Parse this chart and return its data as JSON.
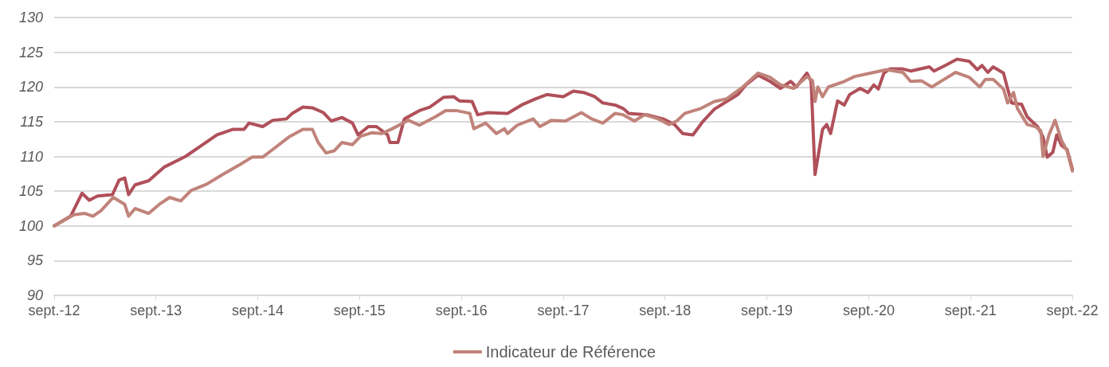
{
  "chart_data": {
    "type": "line",
    "ylim": [
      90,
      130
    ],
    "yticks": [
      90,
      95,
      100,
      105,
      110,
      115,
      120,
      125,
      130
    ],
    "xlim": [
      "2012-09",
      "2022-09"
    ],
    "xticks": [
      {
        "value": "2012-09",
        "label": "sept.-12"
      },
      {
        "value": "2013-09",
        "label": "sept.-13"
      },
      {
        "value": "2014-09",
        "label": "sept.-14"
      },
      {
        "value": "2015-09",
        "label": "sept.-15"
      },
      {
        "value": "2016-09",
        "label": "sept.-16"
      },
      {
        "value": "2017-09",
        "label": "sept.-17"
      },
      {
        "value": "2018-09",
        "label": "sept.-18"
      },
      {
        "value": "2019-09",
        "label": "sept.-19"
      },
      {
        "value": "2020-09",
        "label": "sept.-20"
      },
      {
        "value": "2021-09",
        "label": "sept.-21"
      },
      {
        "value": "2022-09",
        "label": "sept.-22"
      }
    ],
    "grid": "y",
    "legend": "bottom",
    "marker": "none",
    "line_style": "solid",
    "series": [
      {
        "color": "#b0505a",
        "x": [
          "2012-09-01",
          "2012-10-30",
          "2012-12-10",
          "2013-01-05",
          "2013-02-03",
          "2013-03-29",
          "2013-04-22",
          "2013-05-12",
          "2013-05-26",
          "2013-06-18",
          "2013-08-06",
          "2013-10-02",
          "2013-12-16",
          "2014-02-12",
          "2014-04-08",
          "2014-06-05",
          "2014-07-14",
          "2014-08-01",
          "2014-09-19",
          "2014-10-25",
          "2014-12-13",
          "2015-01-03",
          "2015-02-10",
          "2015-03-16",
          "2015-04-25",
          "2015-05-23",
          "2015-06-30",
          "2015-08-07",
          "2015-08-27",
          "2015-10-03",
          "2015-11-01",
          "2015-12-11",
          "2015-12-19",
          "2016-01-17",
          "2016-02-09",
          "2016-04-03",
          "2016-05-10",
          "2016-06-28",
          "2016-08-04",
          "2016-08-24",
          "2016-10-09",
          "2016-10-29",
          "2016-12-05",
          "2017-02-13",
          "2017-04-09",
          "2017-05-25",
          "2017-07-04",
          "2017-09-01",
          "2017-10-07",
          "2017-11-13",
          "2017-12-23",
          "2018-01-21",
          "2018-03-06",
          "2018-04-04",
          "2018-04-24",
          "2018-06-29",
          "2018-08-25",
          "2018-10-05",
          "2018-11-03",
          "2018-12-10",
          "2019-01-16",
          "2019-02-25",
          "2019-04-02",
          "2019-05-20",
          "2019-06-18",
          "2019-08-01",
          "2019-09-13",
          "2019-10-20",
          "2019-11-26",
          "2019-12-16",
          "2020-01-23",
          "2020-02-07",
          "2020-02-21",
          "2020-03-05",
          "2020-03-19",
          "2020-04-03",
          "2020-04-17",
          "2020-05-12",
          "2020-06-05",
          "2020-06-24",
          "2020-08-01",
          "2020-08-29",
          "2020-09-19",
          "2020-10-05",
          "2020-10-25",
          "2020-11-15",
          "2021-01-01",
          "2021-01-29",
          "2021-04-06",
          "2021-04-23",
          "2021-06-02",
          "2021-07-15",
          "2021-08-27",
          "2021-09-25",
          "2021-10-12",
          "2021-11-02",
          "2021-11-21",
          "2021-12-28",
          "2022-01-12",
          "2022-01-26",
          "2022-03-03",
          "2022-03-23",
          "2022-04-29",
          "2022-05-19",
          "2022-06-03",
          "2022-06-23",
          "2022-07-07",
          "2022-07-24",
          "2022-08-13",
          "2022-09-01"
        ],
        "values": [
          100,
          101.4,
          104.7,
          103.7,
          104.3,
          104.5,
          106.6,
          106.9,
          104.5,
          105.9,
          106.5,
          108.5,
          110.0,
          111.6,
          113.1,
          113.9,
          113.9,
          114.8,
          114.3,
          115.2,
          115.4,
          116.2,
          117.1,
          117.0,
          116.3,
          115.1,
          115.6,
          114.8,
          113.1,
          114.3,
          114.3,
          113.1,
          112.0,
          112.0,
          115.4,
          116.6,
          117.1,
          118.5,
          118.6,
          118.0,
          117.9,
          116.0,
          116.3,
          116.2,
          117.5,
          118.3,
          118.9,
          118.6,
          119.4,
          119.2,
          118.6,
          117.7,
          117.4,
          116.9,
          116.2,
          116.0,
          115.4,
          114.6,
          113.3,
          113.1,
          115.1,
          116.8,
          117.7,
          118.9,
          120.3,
          121.7,
          120.8,
          119.8,
          120.8,
          120.0,
          122.0,
          120.8,
          107.4,
          110.5,
          113.9,
          114.6,
          113.3,
          118.0,
          117.4,
          118.9,
          119.8,
          119.2,
          120.3,
          119.7,
          122.0,
          122.6,
          122.6,
          122.3,
          122.9,
          122.3,
          123.1,
          124.0,
          123.7,
          122.5,
          123.1,
          122.1,
          122.9,
          122.0,
          119.7,
          117.7,
          117.5,
          115.7,
          114.3,
          112.8,
          109.9,
          110.6,
          113.1,
          111.6,
          111.0,
          108.2
        ]
      },
      {
        "name": "Indicateur de Référence",
        "color": "#c0837a",
        "x": [
          "2012-09-01",
          "2012-11-11",
          "2012-12-20",
          "2013-01-18",
          "2013-02-16",
          "2013-04-01",
          "2013-05-12",
          "2013-05-26",
          "2013-06-18",
          "2013-08-06",
          "2013-09-13",
          "2013-10-20",
          "2013-11-29",
          "2014-01-05",
          "2014-03-02",
          "2014-04-28",
          "2014-06-24",
          "2014-08-12",
          "2014-09-19",
          "2014-10-25",
          "2014-12-22",
          "2015-02-10",
          "2015-03-16",
          "2015-04-06",
          "2015-05-04",
          "2015-06-02",
          "2015-06-30",
          "2015-08-07",
          "2015-09-05",
          "2015-10-14",
          "2015-11-21",
          "2015-12-28",
          "2016-02-24",
          "2016-04-03",
          "2016-05-30",
          "2016-07-06",
          "2016-08-13",
          "2016-10-01",
          "2016-10-15",
          "2016-11-27",
          "2017-01-04",
          "2017-02-02",
          "2017-02-13",
          "2017-03-20",
          "2017-05-16",
          "2017-06-09",
          "2017-07-21",
          "2017-09-09",
          "2017-11-05",
          "2017-12-12",
          "2018-01-21",
          "2018-03-06",
          "2018-04-04",
          "2018-05-14",
          "2018-06-20",
          "2018-08-08",
          "2018-09-15",
          "2018-10-13",
          "2018-11-11",
          "2019-01-07",
          "2019-02-25",
          "2019-04-10",
          "2019-06-07",
          "2019-08-01",
          "2019-09-13",
          "2019-10-20",
          "2019-12-07",
          "2020-01-23",
          "2020-02-12",
          "2020-02-21",
          "2020-03-02",
          "2020-03-19",
          "2020-04-09",
          "2020-06-05",
          "2020-07-12",
          "2020-09-08",
          "2020-11-04",
          "2021-01-01",
          "2021-01-29",
          "2021-03-08",
          "2021-04-15",
          "2021-05-21",
          "2021-07-09",
          "2021-08-27",
          "2021-10-04",
          "2021-10-24",
          "2021-11-21",
          "2021-12-28",
          "2022-01-12",
          "2022-02-02",
          "2022-02-16",
          "2022-03-23",
          "2022-04-21",
          "2022-05-11",
          "2022-05-19",
          "2022-06-09",
          "2022-07-01",
          "2022-07-24",
          "2022-08-13",
          "2022-09-01"
        ],
        "values": [
          100,
          101.6,
          101.8,
          101.4,
          102.2,
          104.1,
          103.1,
          101.4,
          102.5,
          101.8,
          103.1,
          104.1,
          103.6,
          105.1,
          106.0,
          107.4,
          108.7,
          109.9,
          109.9,
          111.0,
          112.8,
          113.9,
          113.9,
          112.0,
          110.5,
          110.8,
          112.0,
          111.7,
          112.9,
          113.4,
          113.3,
          114.0,
          115.2,
          114.5,
          115.7,
          116.6,
          116.6,
          116.2,
          114.0,
          114.8,
          113.3,
          114.0,
          113.3,
          114.5,
          115.4,
          114.3,
          115.2,
          115.1,
          116.3,
          115.4,
          114.8,
          116.2,
          116.0,
          115.1,
          116.0,
          115.4,
          114.6,
          115.1,
          116.2,
          116.9,
          117.9,
          118.3,
          120.0,
          122.0,
          121.4,
          120.3,
          119.8,
          121.5,
          120.9,
          117.9,
          120.0,
          118.6,
          120.0,
          120.8,
          121.5,
          122.0,
          122.5,
          122.1,
          120.8,
          120.9,
          120.0,
          120.9,
          122.1,
          121.4,
          120.0,
          121.1,
          121.1,
          119.7,
          117.7,
          119.2,
          116.9,
          114.6,
          114.3,
          113.7,
          110.0,
          113.1,
          115.2,
          112.3,
          110.8,
          107.9
        ]
      }
    ]
  }
}
